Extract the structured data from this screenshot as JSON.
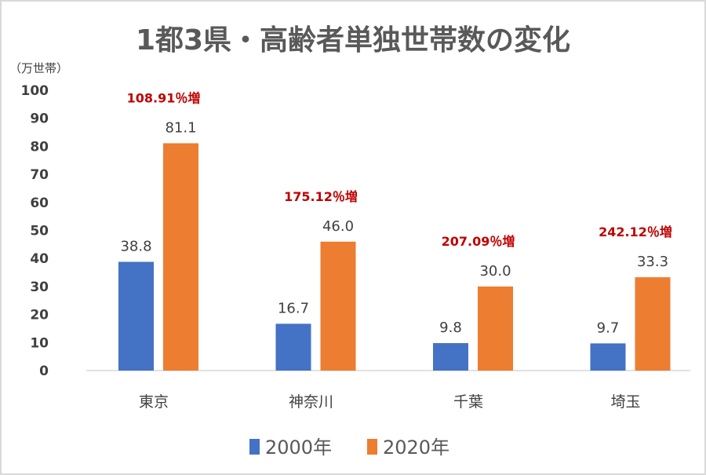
{
  "chart_data": {
    "type": "bar",
    "title": "1都3県・高齢者単独世帯数の変化",
    "ylabel": "（万世帯）",
    "xlabel": "",
    "ylim": [
      0,
      100
    ],
    "yticks": [
      0,
      10,
      20,
      30,
      40,
      50,
      60,
      70,
      80,
      90,
      100
    ],
    "ytick_labels": [
      "0",
      "10",
      "20",
      "30",
      "40",
      "50",
      "60",
      "70",
      "80",
      "90",
      "100"
    ],
    "grid": false,
    "legend_position": "bottom",
    "categories": [
      "東京",
      "神奈川",
      "千葉",
      "埼玉"
    ],
    "series": [
      {
        "name": "2000年",
        "color": "#4472c4",
        "values": [
          38.8,
          16.7,
          9.8,
          9.7
        ],
        "labels": [
          "38.8",
          "16.7",
          "9.8",
          "9.7"
        ]
      },
      {
        "name": "2020年",
        "color": "#ed7d31",
        "values": [
          81.1,
          46.0,
          30.0,
          33.3
        ],
        "labels": [
          "81.1",
          "46.0",
          "30.0",
          "33.3"
        ]
      }
    ],
    "annotations": [
      "108.91％増",
      "175.12％増",
      "207.09％増",
      "242.12％増"
    ],
    "annotation_color": "#c00000"
  }
}
